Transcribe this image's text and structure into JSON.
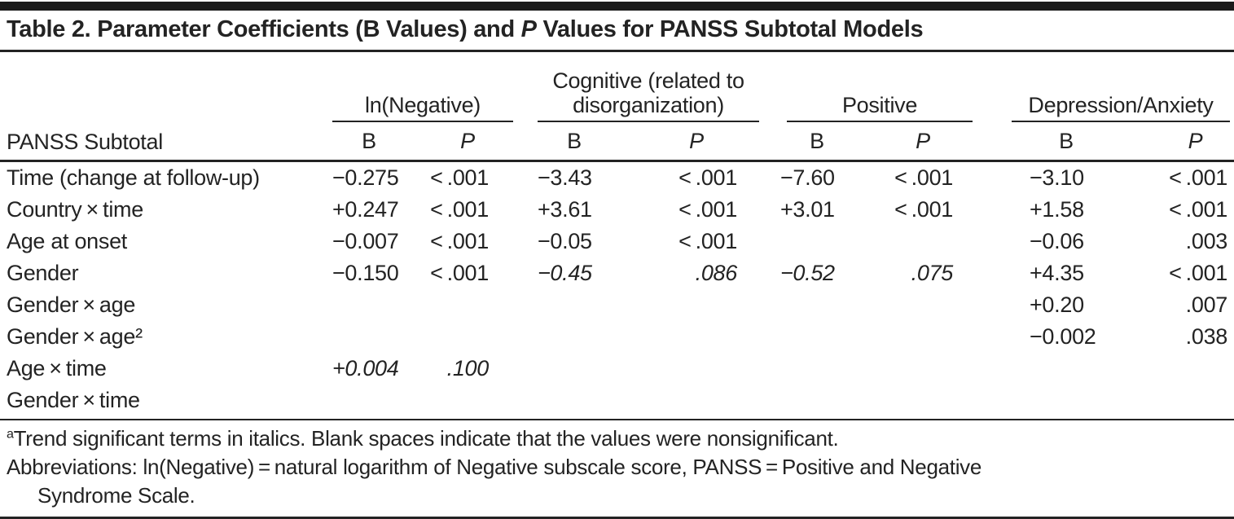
{
  "title": {
    "prefix": "Table 2. Parameter Coefficients (B Values) and ",
    "italic_word": "P",
    "suffix": " Values for PANSS Subtotal Models"
  },
  "header": {
    "stub_label": "PANSS Subtotal",
    "groups": [
      {
        "label": "ln(Negative)",
        "b": "B",
        "p": "P"
      },
      {
        "label": "Cognitive (related to disorganization)",
        "b": "B",
        "p": "P"
      },
      {
        "label": "Positive",
        "b": "B",
        "p": "P"
      },
      {
        "label": "Depression/Anxiety",
        "b": "B",
        "p": "P"
      }
    ]
  },
  "rows": [
    {
      "label": "Time (change at follow-up)",
      "cells": [
        {
          "v": "−0.275"
        },
        {
          "v": "< .001"
        },
        {
          "v": "−3.43"
        },
        {
          "v": "< .001"
        },
        {
          "v": "−7.60"
        },
        {
          "v": "< .001"
        },
        {
          "v": "−3.10"
        },
        {
          "v": "< .001"
        }
      ]
    },
    {
      "label": "Country × time",
      "cells": [
        {
          "v": "+0.247"
        },
        {
          "v": "< .001"
        },
        {
          "v": "+3.61"
        },
        {
          "v": "< .001"
        },
        {
          "v": "+3.01"
        },
        {
          "v": "< .001"
        },
        {
          "v": "+1.58"
        },
        {
          "v": "< .001"
        }
      ]
    },
    {
      "label": "Age at onset",
      "cells": [
        {
          "v": "−0.007"
        },
        {
          "v": "< .001"
        },
        {
          "v": "−0.05"
        },
        {
          "v": "< .001"
        },
        {
          "v": ""
        },
        {
          "v": ""
        },
        {
          "v": "−0.06"
        },
        {
          "v": ".003"
        }
      ]
    },
    {
      "label": "Gender",
      "cells": [
        {
          "v": "−0.150"
        },
        {
          "v": "< .001"
        },
        {
          "v": "−0.45",
          "italic": true
        },
        {
          "v": ".086",
          "italic": true
        },
        {
          "v": "−0.52",
          "italic": true
        },
        {
          "v": ".075",
          "italic": true
        },
        {
          "v": "+4.35"
        },
        {
          "v": "< .001"
        }
      ]
    },
    {
      "label": "Gender × age",
      "cells": [
        {
          "v": ""
        },
        {
          "v": ""
        },
        {
          "v": ""
        },
        {
          "v": ""
        },
        {
          "v": ""
        },
        {
          "v": ""
        },
        {
          "v": "+0.20"
        },
        {
          "v": ".007"
        }
      ]
    },
    {
      "label": "Gender × age²",
      "cells": [
        {
          "v": ""
        },
        {
          "v": ""
        },
        {
          "v": ""
        },
        {
          "v": ""
        },
        {
          "v": ""
        },
        {
          "v": ""
        },
        {
          "v": "−0.002"
        },
        {
          "v": ".038"
        }
      ]
    },
    {
      "label": "Age × time",
      "cells": [
        {
          "v": "+0.004",
          "italic": true
        },
        {
          "v": ".100",
          "italic": true
        },
        {
          "v": ""
        },
        {
          "v": ""
        },
        {
          "v": ""
        },
        {
          "v": ""
        },
        {
          "v": ""
        },
        {
          "v": ""
        }
      ]
    },
    {
      "label": "Gender × time",
      "cells": [
        {
          "v": ""
        },
        {
          "v": ""
        },
        {
          "v": ""
        },
        {
          "v": ""
        },
        {
          "v": ""
        },
        {
          "v": ""
        },
        {
          "v": ""
        },
        {
          "v": ""
        }
      ]
    }
  ],
  "footnotes": {
    "marker": "a",
    "note1": "Trend significant terms in italics. Blank spaces indicate that the values were nonsignificant.",
    "note2_line1": "Abbreviations: ln(Negative) = natural logarithm of Negative subscale score, PANSS = Positive and Negative",
    "note2_line2": "Syndrome Scale."
  }
}
